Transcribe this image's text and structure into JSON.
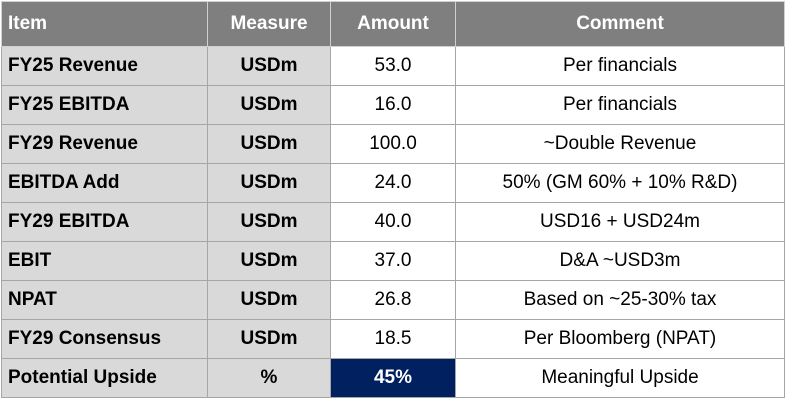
{
  "table": {
    "header": [
      "Item",
      "Measure",
      "Amount",
      "Comment"
    ],
    "rows": [
      [
        "FY25 Revenue",
        "USDm",
        "53.0",
        "Per financials"
      ],
      [
        "FY25 EBITDA",
        "USDm",
        "16.0",
        "Per financials"
      ],
      [
        "FY29 Revenue",
        "USDm",
        "100.0",
        "~Double Revenue"
      ],
      [
        "EBITDA Add",
        "USDm",
        "24.0",
        "50% (GM 60% + 10% R&D)"
      ],
      [
        "FY29 EBITDA",
        "USDm",
        "40.0",
        "USD16 + USD24m"
      ],
      [
        "EBIT",
        "USDm",
        "37.0",
        "D&A ~USD3m"
      ],
      [
        "NPAT",
        "USDm",
        "26.8",
        "Based on ~25-30% tax"
      ],
      [
        "FY29 Consensus",
        "USDm",
        "18.5",
        "Per Bloomberg (NPAT)"
      ],
      [
        "Potential Upside",
        "%",
        "45%",
        "Meaningful Upside"
      ]
    ]
  }
}
